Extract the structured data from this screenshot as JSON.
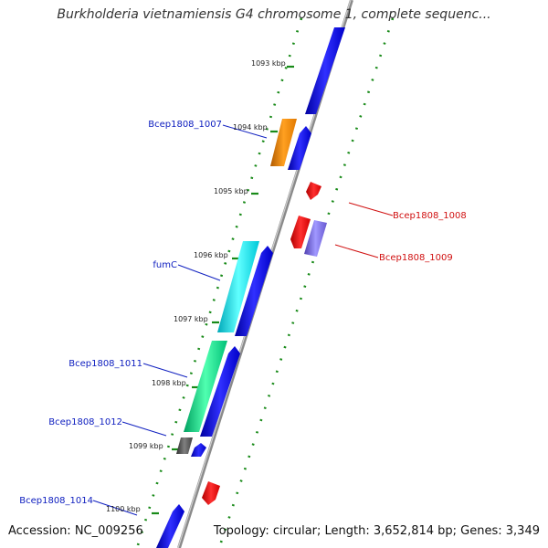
{
  "title": "Burkholderia vietnamiensis G4 chromosome 1, complete sequenc...",
  "footer": {
    "accession": "Accession: NC_009256",
    "summary": "Topology: circular; Length: 3,652,814 bp; Genes: 3,349"
  },
  "ticks": [
    "1093 kbp",
    "1094 kbp",
    "1095 kbp",
    "1096 kbp",
    "1097 kbp",
    "1098 kbp",
    "1099 kbp",
    "1100 kbp"
  ],
  "gene_labels": [
    {
      "text": "Bcep1808_1007",
      "color": "#1020c0"
    },
    {
      "text": "Bcep1808_1008",
      "color": "#d01010"
    },
    {
      "text": "Bcep1808_1009",
      "color": "#d01010"
    },
    {
      "text": "fumC",
      "color": "#1020c0"
    },
    {
      "text": "Bcep1808_1011",
      "color": "#1020c0"
    },
    {
      "text": "Bcep1808_1012",
      "color": "#1020c0"
    },
    {
      "text": "Bcep1808_1014",
      "color": "#1020c0"
    }
  ],
  "colors": {
    "forward_strand": "#1010e0",
    "reverse_strand": "#ee1111",
    "backbone": "#8a8a8a",
    "gc_dots": "#188a18",
    "orange_gene": "#ff8c00",
    "cyan_gene": "#00e6f0",
    "green_gene": "#10e890",
    "gray_gene": "#505050",
    "purple_gene": "#7a6ee0"
  }
}
